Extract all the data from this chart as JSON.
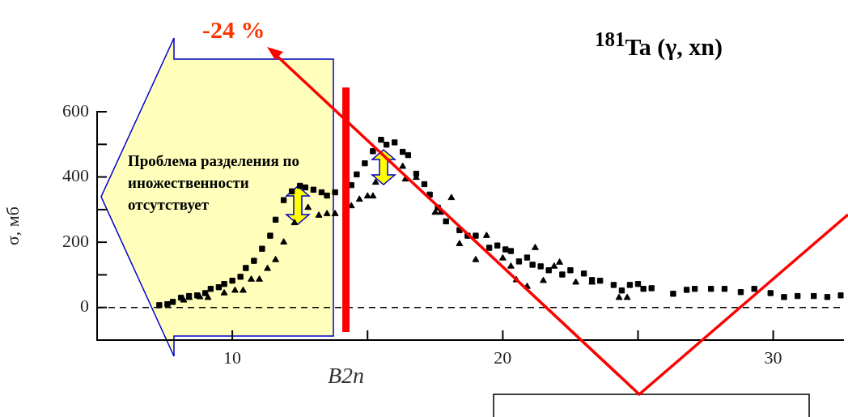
{
  "chart_data": {
    "type": "scatter",
    "title": "$^{181}$Ta (γ, xn)",
    "ylabel": "σ, мб",
    "xlim": [
      5,
      32.6
    ],
    "ylim": [
      -100,
      600
    ],
    "xticks": [
      10,
      {
        "value": 15,
        "label": null
      },
      20,
      {
        "value": 25,
        "label": null
      },
      30
    ],
    "yticks": [
      0,
      {
        "value": 100,
        "label": null
      },
      200,
      {
        "value": 300,
        "label": null
      },
      400,
      {
        "value": 500,
        "label": null
      },
      600
    ],
    "grid": false,
    "ref_lines": [
      {
        "axis": "y",
        "value": 0,
        "line_style": "dashed",
        "color": "#000000"
      },
      {
        "axis": "x",
        "value": 14.2,
        "label": "B2n",
        "color": "#ff0000"
      }
    ],
    "annotations": [
      "-24 %",
      "Проблема разделения по иножественности отсутствует"
    ],
    "series": [
      {
        "marker": "square",
        "color": "#000000",
        "x": [
          7.3,
          7.6,
          7.8,
          8.1,
          8.4,
          8.7,
          9.0,
          9.2,
          9.5,
          9.7,
          10.0,
          10.3,
          10.5,
          10.8,
          11.1,
          11.4,
          11.6,
          11.9,
          12.2,
          12.5,
          12.7,
          13.0,
          13.3,
          13.5,
          13.8,
          14.4,
          14.6,
          14.9,
          15.2,
          15.5,
          15.7,
          16.0,
          16.3,
          16.5,
          16.8,
          17.1,
          17.3,
          17.6,
          17.9,
          18.4,
          18.7,
          19.0,
          19.5,
          19.8,
          20.1,
          20.3,
          20.6,
          20.9,
          21.1,
          21.4,
          21.7,
          22.2,
          22.5,
          23.0,
          23.3,
          23.6,
          24.1,
          24.4,
          24.7,
          25.0,
          25.2,
          25.5,
          26.3,
          26.8,
          27.1,
          27.7,
          28.2,
          28.8,
          29.3,
          29.9,
          30.4,
          30.9,
          31.5,
          32.0,
          32.5
        ],
        "values": [
          7,
          10,
          17,
          30,
          35,
          37,
          44,
          57,
          62,
          72,
          82,
          94,
          121,
          143,
          180,
          220,
          269,
          329,
          356,
          373,
          368,
          361,
          353,
          343,
          353,
          375,
          408,
          442,
          479,
          514,
          499,
          506,
          477,
          467,
          410,
          378,
          346,
          306,
          264,
          237,
          220,
          220,
          183,
          190,
          178,
          173,
          141,
          153,
          131,
          126,
          114,
          101,
          114,
          104,
          84,
          82,
          69,
          52,
          69,
          72,
          57,
          59,
          42,
          54,
          57,
          57,
          57,
          47,
          57,
          44,
          32,
          35,
          35,
          32,
          37
        ]
      },
      {
        "marker": "triangle",
        "color": "#000000",
        "x": [
          8.2,
          8.4,
          8.8,
          9.1,
          9.7,
          10.1,
          10.4,
          10.7,
          11.0,
          11.3,
          11.6,
          11.9,
          12.3,
          12.8,
          13.2,
          13.5,
          13.8,
          14.4,
          14.7,
          15.0,
          15.2,
          15.3,
          16.3,
          16.4,
          16.8,
          17.5,
          17.7,
          18.1,
          18.4,
          19.0,
          19.4,
          20.0,
          20.3,
          20.5,
          20.9,
          21.2,
          21.5,
          21.9,
          22.1,
          22.7,
          23.3,
          24.3,
          24.6
        ],
        "values": [
          22,
          30,
          32,
          30,
          44,
          52,
          52,
          86,
          86,
          119,
          146,
          200,
          259,
          306,
          282,
          287,
          287,
          311,
          331,
          341,
          341,
          383,
          432,
          393,
          398,
          291,
          291,
          336,
          195,
          146,
          220,
          151,
          126,
          84,
          64,
          183,
          82,
          126,
          138,
          77,
          77,
          30,
          30
        ]
      }
    ]
  }
}
